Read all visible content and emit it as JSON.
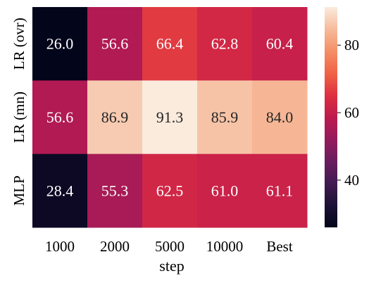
{
  "chart_data": {
    "type": "heatmap",
    "xlabel": "step",
    "ylabel": "",
    "x_categories": [
      "1000",
      "2000",
      "5000",
      "10000",
      "Best"
    ],
    "y_categories": [
      "LR (ovr)",
      "LR (mn)",
      "MLP"
    ],
    "values": [
      [
        26.0,
        56.6,
        66.4,
        62.8,
        60.4
      ],
      [
        56.6,
        86.9,
        91.3,
        85.9,
        84.0
      ],
      [
        28.4,
        55.3,
        62.5,
        61.0,
        61.1
      ]
    ],
    "value_format": "0.1f",
    "colormap": "rocket",
    "colorbar": {
      "range": [
        26.0,
        91.3
      ],
      "ticks": [
        40,
        60,
        80
      ],
      "tick_labels": [
        "40",
        "60",
        "80"
      ]
    }
  }
}
